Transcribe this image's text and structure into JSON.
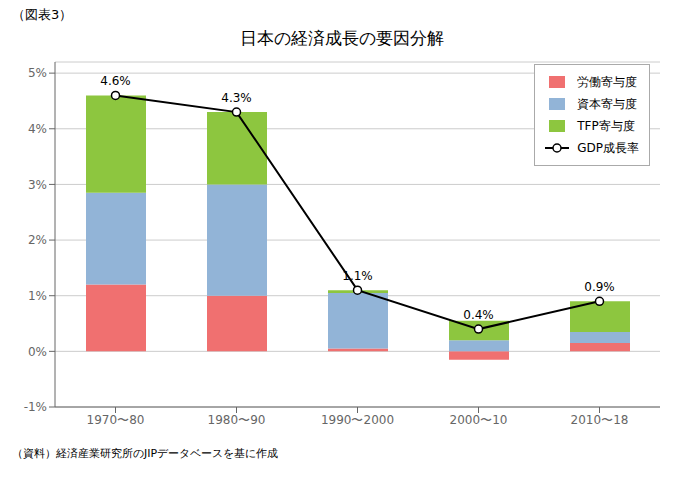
{
  "chart_data": {
    "type": "bar",
    "title": "日本の経済成長の要因分解",
    "subtitle": "（図表3）",
    "annotations": [
      "（資料）経済産業研究所のJIPデータベースを基に作成"
    ],
    "categories": [
      "1970〜80",
      "1980〜90",
      "1990〜2000",
      "2000〜10",
      "2010〜18"
    ],
    "stacked": true,
    "series": [
      {
        "name": "労働寄与度",
        "color": "#f07070",
        "values": [
          1.2,
          1.0,
          0.05,
          -0.15,
          0.15
        ]
      },
      {
        "name": "資本寄与度",
        "color": "#92b4d7",
        "values": [
          1.65,
          2.0,
          1.0,
          0.2,
          0.2
        ]
      },
      {
        "name": "TFP寄与度",
        "color": "#8dc63f",
        "values": [
          1.75,
          1.3,
          0.05,
          0.35,
          0.55
        ]
      },
      {
        "name": "GDP成長率",
        "type": "line",
        "color": "#000000",
        "marker": "circle",
        "data_labels": true,
        "values": [
          4.6,
          4.3,
          1.1,
          0.4,
          0.9
        ],
        "value_labels": [
          "4.6%",
          "4.3%",
          "1.1%",
          "0.4%",
          "0.9%"
        ]
      }
    ],
    "ylim": [
      -1.0,
      5.2
    ],
    "yticks": [
      {
        "value": -1.0,
        "label": "-1%"
      },
      {
        "value": 0.0,
        "label": "0%"
      },
      {
        "value": 1.0,
        "label": "1%"
      },
      {
        "value": 2.0,
        "label": "2%"
      },
      {
        "value": 3.0,
        "label": "3%"
      },
      {
        "value": 4.0,
        "label": "4%"
      },
      {
        "value": 5.0,
        "label": "5%"
      }
    ],
    "grid": true,
    "legend": "upper right"
  }
}
